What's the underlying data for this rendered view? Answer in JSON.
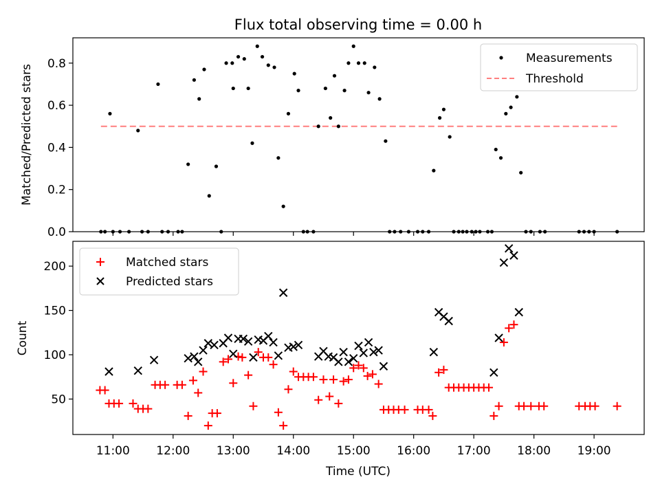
{
  "chart_data": [
    {
      "type": "scatter",
      "title": "Flux total observing time = 0.00 h",
      "xlabel": "",
      "ylabel": "Matched/Predicted stars",
      "xlim": [
        "10:20",
        "19:50"
      ],
      "ylim": [
        0.0,
        0.92
      ],
      "yticks": [
        0.0,
        0.2,
        0.4,
        0.6,
        0.8
      ],
      "ytick_labels": [
        "0.0",
        "0.2",
        "0.4",
        "0.6",
        "0.8"
      ],
      "legend": "upper right",
      "series": [
        {
          "name": "Measurements",
          "kind": "scatter",
          "marker": "dot",
          "color": "#000000",
          "points": [
            [
              "10:48",
              0
            ],
            [
              "10:52",
              0
            ],
            [
              "10:57",
              0.56
            ],
            [
              "11:00",
              0
            ],
            [
              "11:07",
              0
            ],
            [
              "11:16",
              0
            ],
            [
              "11:25",
              0.48
            ],
            [
              "11:29",
              0
            ],
            [
              "11:35",
              0
            ],
            [
              "11:45",
              0.7
            ],
            [
              "11:49",
              0
            ],
            [
              "11:55",
              0
            ],
            [
              "12:05",
              0
            ],
            [
              "12:09",
              0
            ],
            [
              "12:15",
              0.32
            ],
            [
              "12:21",
              0.72
            ],
            [
              "12:26",
              0.63
            ],
            [
              "12:31",
              0.77
            ],
            [
              "12:36",
              0.17
            ],
            [
              "12:43",
              0.31
            ],
            [
              "12:48",
              0
            ],
            [
              "12:53",
              0.8
            ],
            [
              "12:59",
              0.8
            ],
            [
              "13:00",
              0.68
            ],
            [
              "13:05",
              0.83
            ],
            [
              "13:11",
              0.82
            ],
            [
              "13:15",
              0.68
            ],
            [
              "13:19",
              0.42
            ],
            [
              "13:24",
              0.88
            ],
            [
              "13:29",
              0.83
            ],
            [
              "13:35",
              0.79
            ],
            [
              "13:41",
              0.78
            ],
            [
              "13:45",
              0.35
            ],
            [
              "13:50",
              0.12
            ],
            [
              "13:55",
              0.56
            ],
            [
              "14:01",
              0.75
            ],
            [
              "14:05",
              0.67
            ],
            [
              "14:10",
              0
            ],
            [
              "14:14",
              0
            ],
            [
              "14:20",
              0
            ],
            [
              "14:25",
              0.5
            ],
            [
              "14:32",
              0.68
            ],
            [
              "14:37",
              0.54
            ],
            [
              "14:41",
              0.74
            ],
            [
              "14:45",
              0.5
            ],
            [
              "14:51",
              0.67
            ],
            [
              "14:55",
              0.8
            ],
            [
              "15:00",
              0.88
            ],
            [
              "15:05",
              0.8
            ],
            [
              "15:11",
              0.8
            ],
            [
              "15:15",
              0.66
            ],
            [
              "15:21",
              0.78
            ],
            [
              "15:26",
              0.63
            ],
            [
              "15:32",
              0.43
            ],
            [
              "15:36",
              0
            ],
            [
              "15:41",
              0
            ],
            [
              "15:47",
              0
            ],
            [
              "15:55",
              0
            ],
            [
              "16:04",
              0
            ],
            [
              "16:09",
              0
            ],
            [
              "16:15",
              0
            ],
            [
              "16:20",
              0.29
            ],
            [
              "16:26",
              0.54
            ],
            [
              "16:30",
              0.58
            ],
            [
              "16:36",
              0.45
            ],
            [
              "16:40",
              0
            ],
            [
              "16:45",
              0
            ],
            [
              "16:49",
              0
            ],
            [
              "16:53",
              0
            ],
            [
              "16:58",
              0
            ],
            [
              "17:02",
              0
            ],
            [
              "17:06",
              0
            ],
            [
              "17:14",
              0
            ],
            [
              "17:18",
              0
            ],
            [
              "17:22",
              0.39
            ],
            [
              "17:27",
              0.35
            ],
            [
              "17:32",
              0.56
            ],
            [
              "17:37",
              0.59
            ],
            [
              "17:43",
              0.64
            ],
            [
              "17:47",
              0.28
            ],
            [
              "17:52",
              0
            ],
            [
              "17:57",
              0
            ],
            [
              "18:06",
              0
            ],
            [
              "18:11",
              0
            ],
            [
              "18:45",
              0
            ],
            [
              "18:50",
              0
            ],
            [
              "18:55",
              0
            ],
            [
              "19:00",
              0
            ],
            [
              "19:23",
              0
            ]
          ]
        },
        {
          "name": "Threshold",
          "kind": "line",
          "style": "dashed",
          "color": "#ff7f7f",
          "x": [
            "10:48",
            "19:23"
          ],
          "y": [
            0.5,
            0.5
          ]
        }
      ]
    },
    {
      "type": "scatter",
      "title": "",
      "xlabel": "Time (UTC)",
      "ylabel": "Count",
      "xlim": [
        "10:20",
        "19:50"
      ],
      "ylim": [
        10,
        228
      ],
      "yticks": [
        50,
        100,
        150,
        200
      ],
      "ytick_labels": [
        "50",
        "100",
        "150",
        "200"
      ],
      "xticks": [
        "11:00",
        "12:00",
        "13:00",
        "14:00",
        "15:00",
        "16:00",
        "17:00",
        "18:00",
        "19:00"
      ],
      "xtick_labels": [
        "11:00",
        "12:00",
        "13:00",
        "14:00",
        "15:00",
        "16:00",
        "17:00",
        "18:00",
        "19:00"
      ],
      "legend": "upper left",
      "series": [
        {
          "name": "Matched stars",
          "kind": "scatter",
          "marker": "plus",
          "color": "#ff0000",
          "points": [
            [
              "10:47",
              60
            ],
            [
              "10:52",
              60
            ],
            [
              "10:56",
              45
            ],
            [
              "11:01",
              45
            ],
            [
              "11:06",
              45
            ],
            [
              "11:20",
              45
            ],
            [
              "11:25",
              39
            ],
            [
              "11:30",
              39
            ],
            [
              "11:35",
              39
            ],
            [
              "11:42",
              66
            ],
            [
              "11:47",
              66
            ],
            [
              "11:52",
              66
            ],
            [
              "12:04",
              66
            ],
            [
              "12:09",
              66
            ],
            [
              "12:15",
              31
            ],
            [
              "12:20",
              71
            ],
            [
              "12:25",
              57
            ],
            [
              "12:30",
              81
            ],
            [
              "12:35",
              20
            ],
            [
              "12:39",
              34
            ],
            [
              "12:44",
              34
            ],
            [
              "12:50",
              92
            ],
            [
              "12:55",
              95
            ],
            [
              "13:00",
              68
            ],
            [
              "13:05",
              98
            ],
            [
              "13:09",
              97
            ],
            [
              "13:15",
              77
            ],
            [
              "13:20",
              42
            ],
            [
              "13:25",
              103
            ],
            [
              "13:30",
              97
            ],
            [
              "13:35",
              97
            ],
            [
              "13:40",
              89
            ],
            [
              "13:45",
              35
            ],
            [
              "13:50",
              20
            ],
            [
              "13:55",
              61
            ],
            [
              "14:00",
              81
            ],
            [
              "14:05",
              75
            ],
            [
              "14:10",
              75
            ],
            [
              "14:15",
              75
            ],
            [
              "14:20",
              75
            ],
            [
              "14:25",
              49
            ],
            [
              "14:30",
              72
            ],
            [
              "14:36",
              53
            ],
            [
              "14:40",
              72
            ],
            [
              "14:45",
              45
            ],
            [
              "14:50",
              70
            ],
            [
              "14:55",
              72
            ],
            [
              "15:00",
              85
            ],
            [
              "15:05",
              88
            ],
            [
              "15:10",
              85
            ],
            [
              "15:14",
              76
            ],
            [
              "15:19",
              78
            ],
            [
              "15:25",
              67
            ],
            [
              "15:30",
              38
            ],
            [
              "15:35",
              38
            ],
            [
              "15:40",
              38
            ],
            [
              "15:45",
              38
            ],
            [
              "15:51",
              38
            ],
            [
              "16:04",
              38
            ],
            [
              "16:09",
              38
            ],
            [
              "16:15",
              38
            ],
            [
              "16:19",
              31
            ],
            [
              "16:25",
              80
            ],
            [
              "16:30",
              83
            ],
            [
              "16:35",
              63
            ],
            [
              "16:40",
              63
            ],
            [
              "16:45",
              63
            ],
            [
              "16:50",
              63
            ],
            [
              "16:55",
              63
            ],
            [
              "17:00",
              63
            ],
            [
              "17:05",
              63
            ],
            [
              "17:10",
              63
            ],
            [
              "17:15",
              63
            ],
            [
              "17:20",
              31
            ],
            [
              "17:25",
              42
            ],
            [
              "17:30",
              114
            ],
            [
              "17:35",
              130
            ],
            [
              "17:40",
              134
            ],
            [
              "17:45",
              42
            ],
            [
              "17:50",
              42
            ],
            [
              "17:57",
              42
            ],
            [
              "18:05",
              42
            ],
            [
              "18:10",
              42
            ],
            [
              "18:45",
              42
            ],
            [
              "18:51",
              42
            ],
            [
              "18:56",
              42
            ],
            [
              "19:01",
              42
            ],
            [
              "19:23",
              42
            ]
          ]
        },
        {
          "name": "Predicted stars",
          "kind": "scatter",
          "marker": "x",
          "color": "#000000",
          "points": [
            [
              "10:56",
              81
            ],
            [
              "11:25",
              82
            ],
            [
              "11:41",
              94
            ],
            [
              "12:15",
              96
            ],
            [
              "12:21",
              98
            ],
            [
              "12:25",
              92
            ],
            [
              "12:30",
              105
            ],
            [
              "12:35",
              113
            ],
            [
              "12:41",
              111
            ],
            [
              "12:50",
              113
            ],
            [
              "12:55",
              119
            ],
            [
              "13:00",
              101
            ],
            [
              "13:05",
              118
            ],
            [
              "13:10",
              118
            ],
            [
              "13:15",
              115
            ],
            [
              "13:20",
              97
            ],
            [
              "13:25",
              117
            ],
            [
              "13:30",
              116
            ],
            [
              "13:35",
              121
            ],
            [
              "13:40",
              114
            ],
            [
              "13:45",
              99
            ],
            [
              "13:50",
              170
            ],
            [
              "13:55",
              108
            ],
            [
              "14:00",
              109
            ],
            [
              "14:05",
              111
            ],
            [
              "14:25",
              98
            ],
            [
              "14:30",
              104
            ],
            [
              "14:35",
              98
            ],
            [
              "14:40",
              97
            ],
            [
              "14:45",
              92
            ],
            [
              "14:50",
              103
            ],
            [
              "14:55",
              92
            ],
            [
              "15:00",
              96
            ],
            [
              "15:05",
              110
            ],
            [
              "15:10",
              102
            ],
            [
              "15:15",
              114
            ],
            [
              "15:20",
              103
            ],
            [
              "15:25",
              105
            ],
            [
              "15:30",
              87
            ],
            [
              "16:20",
              103
            ],
            [
              "16:25",
              148
            ],
            [
              "16:30",
              143
            ],
            [
              "16:35",
              138
            ],
            [
              "17:20",
              80
            ],
            [
              "17:25",
              119
            ],
            [
              "17:30",
              204
            ],
            [
              "17:35",
              220
            ],
            [
              "17:40",
              212
            ],
            [
              "17:45",
              148
            ]
          ]
        }
      ]
    }
  ]
}
